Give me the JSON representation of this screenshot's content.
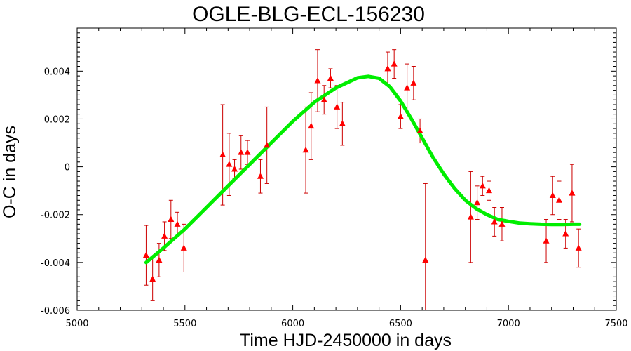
{
  "chart_data": {
    "type": "scatter",
    "title": "OGLE-BLG-ECL-156230",
    "xlabel": "Time HJD-2450000 in days",
    "ylabel": "O-C in days",
    "xlim": [
      5000,
      7500
    ],
    "ylim": [
      -0.006,
      0.0058
    ],
    "xticks": [
      5000,
      5500,
      6000,
      6500,
      7000,
      7500
    ],
    "yticks": [
      -0.006,
      -0.004,
      -0.002,
      0,
      0.002,
      0.004
    ],
    "xtick_labels": [
      "5000",
      "5500",
      "6000",
      "6500",
      "7000",
      "7500"
    ],
    "ytick_labels": [
      "-0.006",
      "-0.004",
      "-0.002",
      "0",
      "0.002",
      "0.004"
    ],
    "grid": false,
    "colors": {
      "points": "#ff0000",
      "errorbars": "#cc0000",
      "fit": "#00ee00"
    },
    "points": [
      {
        "x": 5320,
        "y": -0.0037,
        "err": 0.00125
      },
      {
        "x": 5350,
        "y": -0.0047,
        "err": 0.0009
      },
      {
        "x": 5380,
        "y": -0.0039,
        "err": 0.0007
      },
      {
        "x": 5405,
        "y": -0.0029,
        "err": 0.0006
      },
      {
        "x": 5435,
        "y": -0.0022,
        "err": 0.0008
      },
      {
        "x": 5465,
        "y": -0.0024,
        "err": 0.0005
      },
      {
        "x": 5495,
        "y": -0.0034,
        "err": 0.001
      },
      {
        "x": 5675,
        "y": 0.0005,
        "err": 0.0021
      },
      {
        "x": 5705,
        "y": 0.0001,
        "err": 0.0013
      },
      {
        "x": 5730,
        "y": -0.0001,
        "err": 0.0004
      },
      {
        "x": 5760,
        "y": 0.0006,
        "err": 0.0007
      },
      {
        "x": 5790,
        "y": 0.0006,
        "err": 0.0005
      },
      {
        "x": 5850,
        "y": -0.0004,
        "err": 0.0007
      },
      {
        "x": 5880,
        "y": 0.0009,
        "err": 0.0016
      },
      {
        "x": 6060,
        "y": 0.0007,
        "err": 0.0018
      },
      {
        "x": 6085,
        "y": 0.0017,
        "err": 0.0014
      },
      {
        "x": 6115,
        "y": 0.0036,
        "err": 0.0013
      },
      {
        "x": 6145,
        "y": 0.0028,
        "err": 0.0006
      },
      {
        "x": 6175,
        "y": 0.0037,
        "err": 0.0004
      },
      {
        "x": 6205,
        "y": 0.0025,
        "err": 0.0009
      },
      {
        "x": 6230,
        "y": 0.0018,
        "err": 0.0009
      },
      {
        "x": 6440,
        "y": 0.0041,
        "err": 0.0007
      },
      {
        "x": 6470,
        "y": 0.0043,
        "err": 0.0006
      },
      {
        "x": 6500,
        "y": 0.0021,
        "err": 0.0005
      },
      {
        "x": 6530,
        "y": 0.0033,
        "err": 0.001
      },
      {
        "x": 6560,
        "y": 0.0035,
        "err": 0.0007
      },
      {
        "x": 6590,
        "y": 0.0015,
        "err": 0.0005
      },
      {
        "x": 6615,
        "y": -0.0039,
        "err": 0.0032
      },
      {
        "x": 6825,
        "y": -0.0021,
        "err": 0.0019
      },
      {
        "x": 6855,
        "y": -0.0015,
        "err": 0.0007
      },
      {
        "x": 6880,
        "y": -0.0008,
        "err": 0.0004
      },
      {
        "x": 6910,
        "y": -0.001,
        "err": 0.0004
      },
      {
        "x": 6935,
        "y": -0.0023,
        "err": 0.0006
      },
      {
        "x": 6970,
        "y": -0.0024,
        "err": 0.0007
      },
      {
        "x": 7175,
        "y": -0.0031,
        "err": 0.0009
      },
      {
        "x": 7205,
        "y": -0.0012,
        "err": 0.0008
      },
      {
        "x": 7235,
        "y": -0.0014,
        "err": 0.0008
      },
      {
        "x": 7265,
        "y": -0.0028,
        "err": 0.0006
      },
      {
        "x": 7295,
        "y": -0.0011,
        "err": 0.0012
      },
      {
        "x": 7325,
        "y": -0.0034,
        "err": 0.0008
      }
    ],
    "fit": {
      "x": [
        5320,
        5400,
        5500,
        5600,
        5700,
        5800,
        5900,
        6000,
        6100,
        6200,
        6300,
        6350,
        6400,
        6450,
        6500,
        6550,
        6600,
        6650,
        6700,
        6750,
        6800,
        6850,
        6900,
        6950,
        7000,
        7050,
        7100,
        7150,
        7200,
        7250,
        7300,
        7330
      ],
      "y": [
        -0.004,
        -0.0034,
        -0.0026,
        -0.0017,
        -0.0008,
        0.0001,
        0.001,
        0.0019,
        0.0027,
        0.0033,
        0.00372,
        0.00378,
        0.0037,
        0.00335,
        0.00275,
        0.002,
        0.0012,
        0.0004,
        -0.0003,
        -0.0009,
        -0.0014,
        -0.00175,
        -0.002,
        -0.0022,
        -0.00228,
        -0.00235,
        -0.00238,
        -0.0024,
        -0.00241,
        -0.00241,
        -0.0024,
        -0.0024
      ]
    }
  }
}
